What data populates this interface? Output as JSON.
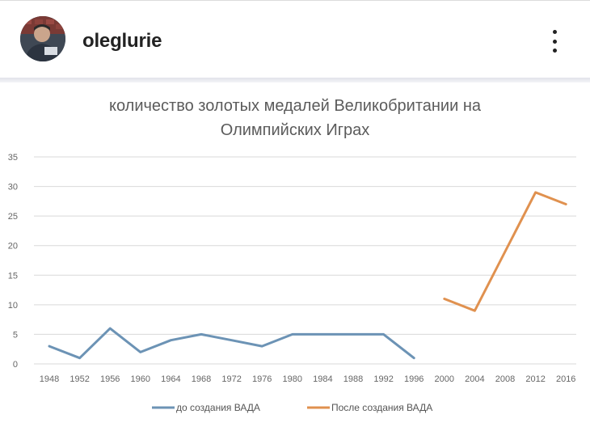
{
  "post_header": {
    "username": "oleglurie",
    "avatar_icon": "user-avatar-icon",
    "menu_icon": "more-vertical-icon"
  },
  "chart_data": {
    "type": "line",
    "title_line1": "количество золотых медалей Великобритании на",
    "title_line2": "Олимпийских Играх",
    "categories": [
      "1948",
      "1952",
      "1956",
      "1960",
      "1964",
      "1968",
      "1972",
      "1976",
      "1980",
      "1984",
      "1988",
      "1992",
      "1996",
      "2000",
      "2004",
      "2008",
      "2012",
      "2016"
    ],
    "y_ticks": [
      "0",
      "5",
      "10",
      "15",
      "20",
      "25",
      "30",
      "35"
    ],
    "ylim": [
      0,
      35
    ],
    "grid": true,
    "legend_position": "bottom",
    "series": [
      {
        "name": "до создания ВАДА",
        "color": "#6c93b5",
        "values": [
          3,
          1,
          6,
          2,
          4,
          5,
          4,
          3,
          5,
          5,
          5,
          5,
          1,
          null,
          null,
          null,
          null,
          null
        ]
      },
      {
        "name": "После создания ВАДА",
        "color": "#e0914f",
        "values": [
          null,
          null,
          null,
          null,
          null,
          null,
          null,
          null,
          null,
          null,
          null,
          null,
          null,
          11,
          9,
          19,
          29,
          27
        ]
      }
    ]
  }
}
